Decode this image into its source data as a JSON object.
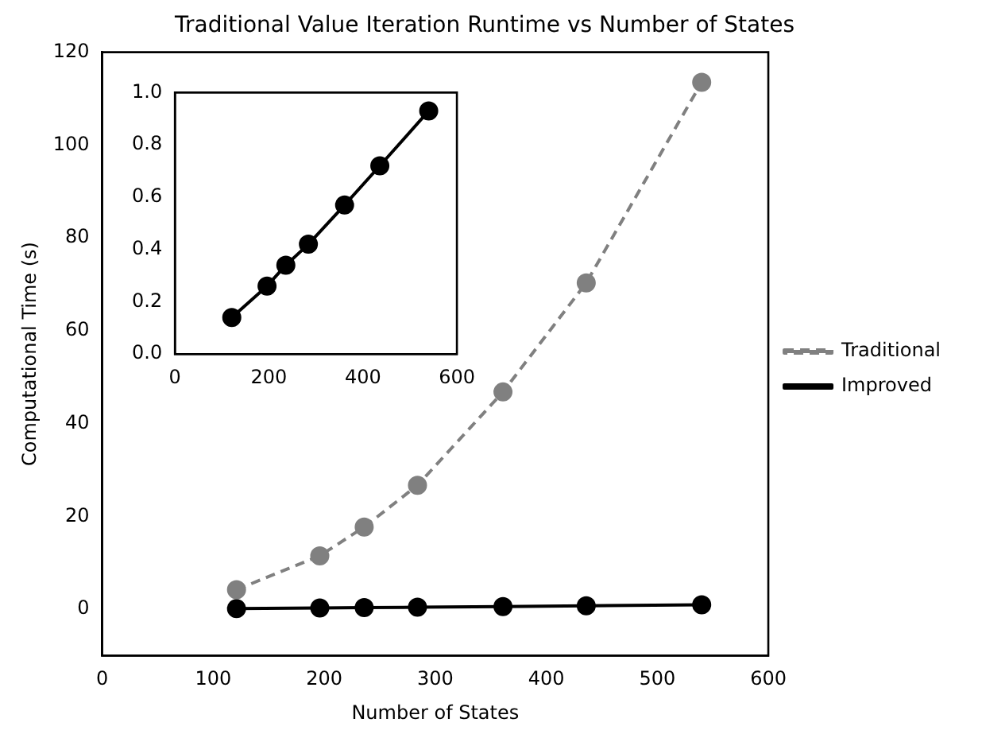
{
  "chart_data": [
    {
      "type": "line",
      "title": "Traditional Value Iteration Runtime vs Number of States",
      "xlabel": "Number of States",
      "ylabel": "Computational Time (s)",
      "x": [
        121,
        196,
        236,
        284,
        361,
        436,
        540
      ],
      "xlim": [
        0,
        600
      ],
      "xticks": [
        0,
        100,
        200,
        300,
        400,
        500,
        600
      ],
      "ylim": [
        -10,
        120
      ],
      "yticks": [
        0,
        20,
        40,
        60,
        80,
        100,
        120
      ],
      "grid": false,
      "legend": "right",
      "marker": "circle",
      "series": [
        {
          "name": "Traditional",
          "color": "#808080",
          "line_style": "dashed",
          "values": [
            4.2,
            11.5,
            17.7,
            26.7,
            46.8,
            70.3,
            113.5
          ]
        },
        {
          "name": "Improved",
          "color": "#000000",
          "line_style": "solid",
          "values": [
            0.14,
            0.26,
            0.34,
            0.42,
            0.57,
            0.72,
            0.93
          ]
        }
      ]
    },
    {
      "type": "line",
      "x": [
        121,
        196,
        236,
        284,
        361,
        436,
        540
      ],
      "xlim": [
        0,
        600
      ],
      "xticks": [
        0,
        200,
        400,
        600
      ],
      "ylim": [
        0,
        1
      ],
      "yticks": [
        {
          "value": 0,
          "label": "0.0"
        },
        {
          "value": 0.2,
          "label": "0.2"
        },
        {
          "value": 0.4,
          "label": "0.4"
        },
        {
          "value": 0.6,
          "label": "0.6"
        },
        {
          "value": 0.8,
          "label": "0.8"
        },
        {
          "value": 1,
          "label": "1.0"
        }
      ],
      "grid": false,
      "legend": false,
      "marker": "circle",
      "series": [
        {
          "color": "#000000",
          "line_style": "solid",
          "values": [
            0.14,
            0.26,
            0.34,
            0.42,
            0.57,
            0.72,
            0.93
          ]
        }
      ]
    }
  ]
}
